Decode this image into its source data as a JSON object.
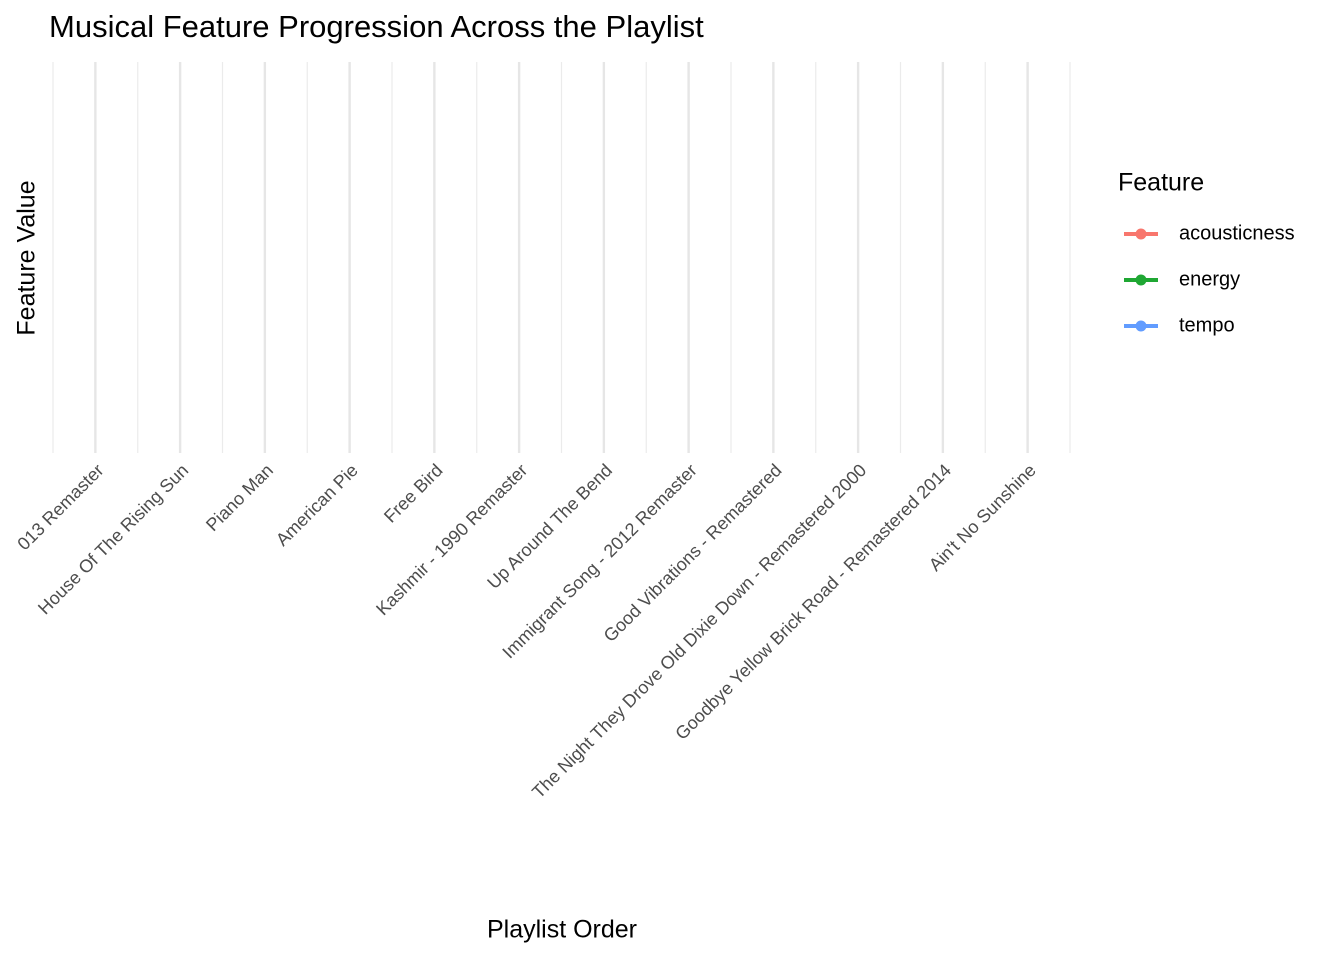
{
  "chart_data": {
    "type": "line",
    "title": "Musical Feature Progression Across the Playlist",
    "xlabel": "Playlist Order",
    "ylabel": "Feature Value",
    "categories": [
      "013 Remaster",
      "House Of The Rising Sun",
      "Piano Man",
      "American Pie",
      "Free Bird",
      "Kashmir - 1990 Remaster",
      "Up Around The Bend",
      "Immigrant Song - 2012 Remaster",
      "Good Vibrations - Remastered",
      "The Night They Drove Old Dixie Down - Remastered 2000",
      "Goodbye Yellow Brick Road - Remastered 2014",
      "Ain't No Sunshine"
    ],
    "legend_title": "Feature",
    "series": [
      {
        "name": "acousticness",
        "color": "#f8766d"
      },
      {
        "name": "energy",
        "color": "#1fa733"
      },
      {
        "name": "tempo",
        "color": "#619cff"
      }
    ],
    "grid": true
  }
}
